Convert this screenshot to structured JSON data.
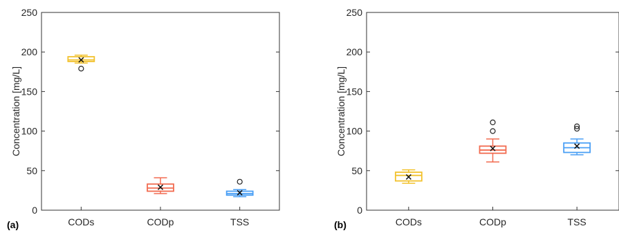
{
  "chart_data": [
    {
      "type": "box",
      "panel_label": "(a)",
      "ylabel": "Concentration [mg/L]",
      "ylim": [
        0,
        250
      ],
      "yticks": [
        0,
        50,
        100,
        150,
        200,
        250
      ],
      "categories": [
        "CODs",
        "CODp",
        "TSS"
      ],
      "grid": false,
      "boxes": [
        {
          "name": "CODs",
          "color": "#F2C22E",
          "whisker_low": 186,
          "q1": 188,
          "median": 190,
          "q3": 194,
          "whisker_high": 196,
          "mean": 190,
          "outliers": [
            179
          ]
        },
        {
          "name": "CODp",
          "color": "#F26B50",
          "whisker_low": 21,
          "q1": 24,
          "median": 28,
          "q3": 33,
          "whisker_high": 41,
          "mean": 29,
          "outliers": []
        },
        {
          "name": "TSS",
          "color": "#4A9FF5",
          "whisker_low": 17,
          "q1": 19,
          "median": 21,
          "q3": 24,
          "whisker_high": 26,
          "mean": 22,
          "outliers": [
            36
          ]
        }
      ]
    },
    {
      "type": "box",
      "panel_label": "(b)",
      "ylabel": "Concentration [mg/L]",
      "ylim": [
        0,
        250
      ],
      "yticks": [
        0,
        50,
        100,
        150,
        200,
        250
      ],
      "categories": [
        "CODs",
        "CODp",
        "TSS"
      ],
      "grid": false,
      "boxes": [
        {
          "name": "CODs",
          "color": "#F2C22E",
          "whisker_low": 34,
          "q1": 37,
          "median": 44,
          "q3": 48,
          "whisker_high": 51,
          "mean": 42,
          "outliers": []
        },
        {
          "name": "CODp",
          "color": "#F26B50",
          "whisker_low": 61,
          "q1": 72,
          "median": 76,
          "q3": 81,
          "whisker_high": 90,
          "mean": 78,
          "outliers": [
            100,
            111
          ]
        },
        {
          "name": "TSS",
          "color": "#4A9FF5",
          "whisker_low": 70,
          "q1": 73,
          "median": 79,
          "q3": 85,
          "whisker_high": 90,
          "mean": 81,
          "outliers": [
            103,
            106
          ]
        }
      ]
    }
  ]
}
